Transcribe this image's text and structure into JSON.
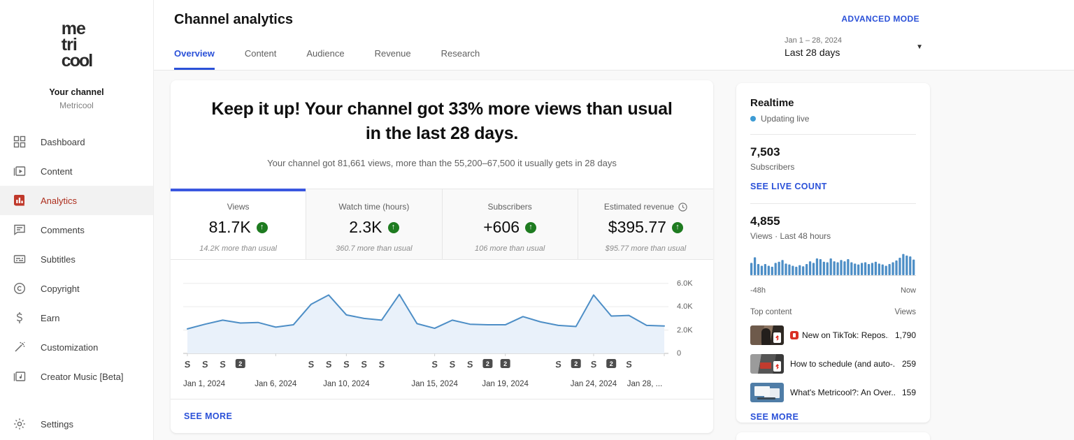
{
  "sidebar": {
    "logo_lines": [
      "me",
      "tri",
      "cool"
    ],
    "channel_label": "Your channel",
    "channel_name": "Metricool",
    "items": [
      {
        "label": "Dashboard",
        "icon": "dashboard-icon",
        "active": false
      },
      {
        "label": "Content",
        "icon": "content-icon",
        "active": false
      },
      {
        "label": "Analytics",
        "icon": "analytics-icon",
        "active": true
      },
      {
        "label": "Comments",
        "icon": "comments-icon",
        "active": false
      },
      {
        "label": "Subtitles",
        "icon": "subtitles-icon",
        "active": false
      },
      {
        "label": "Copyright",
        "icon": "copyright-icon",
        "active": false
      },
      {
        "label": "Earn",
        "icon": "earn-icon",
        "active": false
      },
      {
        "label": "Customization",
        "icon": "customization-icon",
        "active": false
      },
      {
        "label": "Creator Music [Beta]",
        "icon": "creator-music-icon",
        "active": false
      },
      {
        "label": "Settings",
        "icon": "settings-icon",
        "active": false
      }
    ]
  },
  "header": {
    "title": "Channel analytics",
    "tabs": [
      {
        "label": "Overview",
        "active": true
      },
      {
        "label": "Content",
        "active": false
      },
      {
        "label": "Audience",
        "active": false
      },
      {
        "label": "Revenue",
        "active": false
      },
      {
        "label": "Research",
        "active": false
      }
    ],
    "advanced_mode": "ADVANCED MODE",
    "date_range": "Jan 1 – 28, 2024",
    "date_label": "Last 28 days"
  },
  "main": {
    "headline": "Keep it up! Your channel got 33% more views than usual in the last 28 days.",
    "subheadline": "Your channel got 81,661 views, more than the 55,200–67,500 it usually gets in 28 days",
    "metrics": [
      {
        "label": "Views",
        "value": "81.7K",
        "delta": "14.2K more than usual",
        "active": true,
        "clock": false
      },
      {
        "label": "Watch time (hours)",
        "value": "2.3K",
        "delta": "360.7 more than usual",
        "active": false,
        "clock": false
      },
      {
        "label": "Subscribers",
        "value": "+606",
        "delta": "106 more than usual",
        "active": false,
        "clock": false
      },
      {
        "label": "Estimated revenue",
        "value": "$395.77",
        "delta": "$95.77 more than usual",
        "active": false,
        "clock": true
      }
    ],
    "see_more": "SEE MORE"
  },
  "chart_data": [
    {
      "type": "line",
      "title": "Daily views, last 28 days",
      "series": [
        {
          "name": "Views",
          "values": [
            2100,
            2500,
            2850,
            2600,
            2650,
            2250,
            2450,
            4200,
            5000,
            3300,
            3000,
            2850,
            5050,
            2550,
            2150,
            2850,
            2500,
            2450,
            2450,
            3150,
            2700,
            2400,
            2300,
            5000,
            3200,
            3250,
            2400,
            2350
          ]
        }
      ],
      "x_days": 28,
      "x_tick_labels": [
        {
          "day": 1,
          "label": "Jan 1, 2024"
        },
        {
          "day": 6,
          "label": "Jan 6, 2024"
        },
        {
          "day": 10,
          "label": "Jan 10, 2024"
        },
        {
          "day": 15,
          "label": "Jan 15, 2024"
        },
        {
          "day": 19,
          "label": "Jan 19, 2024"
        },
        {
          "day": 24,
          "label": "Jan 24, 2024"
        },
        {
          "day": 28,
          "label": "Jan 28, ..."
        }
      ],
      "yticks": [
        {
          "value": 6000,
          "label": "6.0K"
        },
        {
          "value": 4000,
          "label": "4.0K"
        },
        {
          "value": 2000,
          "label": "2.0K"
        },
        {
          "value": 0,
          "label": "0"
        }
      ],
      "ylim": [
        0,
        6700
      ],
      "grid": true,
      "legend_position": "none",
      "markers": [
        {
          "day": 1,
          "type": "shorts"
        },
        {
          "day": 2,
          "type": "shorts"
        },
        {
          "day": 3,
          "type": "shorts"
        },
        {
          "day": 4,
          "type": "count",
          "label": "2"
        },
        {
          "day": 8,
          "type": "shorts"
        },
        {
          "day": 9,
          "type": "shorts"
        },
        {
          "day": 10,
          "type": "shorts"
        },
        {
          "day": 11,
          "type": "shorts"
        },
        {
          "day": 12,
          "type": "shorts"
        },
        {
          "day": 15,
          "type": "shorts"
        },
        {
          "day": 16,
          "type": "shorts"
        },
        {
          "day": 17,
          "type": "shorts"
        },
        {
          "day": 18,
          "type": "count",
          "label": "2"
        },
        {
          "day": 19,
          "type": "count",
          "label": "2"
        },
        {
          "day": 22,
          "type": "shorts"
        },
        {
          "day": 23,
          "type": "count",
          "label": "2"
        },
        {
          "day": 24,
          "type": "shorts"
        },
        {
          "day": 25,
          "type": "count",
          "label": "2"
        },
        {
          "day": 26,
          "type": "shorts"
        }
      ]
    },
    {
      "type": "bar",
      "title": "Views · Last 48 hours",
      "x_left_label": "-48h",
      "x_right_label": "Now",
      "unit": "relative",
      "values": [
        0.55,
        0.8,
        0.5,
        0.42,
        0.5,
        0.42,
        0.38,
        0.55,
        0.6,
        0.68,
        0.52,
        0.48,
        0.42,
        0.38,
        0.45,
        0.4,
        0.5,
        0.62,
        0.55,
        0.75,
        0.72,
        0.6,
        0.58,
        0.75,
        0.62,
        0.58,
        0.68,
        0.62,
        0.72,
        0.58,
        0.52,
        0.48,
        0.55,
        0.58,
        0.5,
        0.55,
        0.6,
        0.52,
        0.48,
        0.42,
        0.5,
        0.58,
        0.66,
        0.78,
        0.95,
        0.88,
        0.84,
        0.7
      ]
    }
  ],
  "realtime": {
    "title": "Realtime",
    "updating": "Updating live",
    "subscribers_value": "7,503",
    "subscribers_label": "Subscribers",
    "live_count_link": "SEE LIVE COUNT",
    "views_value": "4,855",
    "views_label": "Views · Last 48 hours",
    "axis_left": "-48h",
    "axis_right": "Now",
    "top_content": {
      "header_left": "Top content",
      "header_right": "Views",
      "items": [
        {
          "title": "New on TikTok: Repos...",
          "views": "1,790",
          "badge": true
        },
        {
          "title": "How to schedule (and auto-...",
          "views": "259",
          "badge": false
        },
        {
          "title": "What's Metricool?: An Over...",
          "views": "159",
          "badge": false
        }
      ],
      "see_more": "SEE MORE"
    }
  },
  "colors": {
    "accent_blue": "#2b51d8",
    "tab_border_blue": "#3a57e0",
    "up_green": "#1e7b20",
    "analytics_red": "#c0392b",
    "chart_line": "#4d8ec6",
    "chart_fill": "#e9f1fa",
    "marker_dark": "#4d4d4d"
  }
}
